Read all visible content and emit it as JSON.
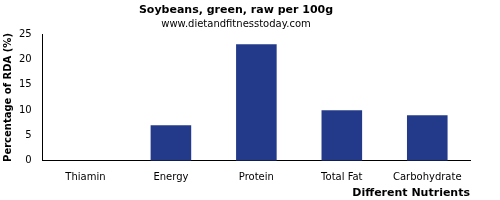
{
  "chart_data": {
    "type": "bar",
    "title": "Soybeans, green, raw per 100g",
    "subtitle": "www.dietandfitnesstoday.com",
    "x_label": "Different Nutrients",
    "y_label": "Percentage of RDA (%)",
    "categories": [
      "Thiamin",
      "Energy",
      "Protein",
      "Total Fat",
      "Carbohydrate"
    ],
    "values": [
      0,
      7,
      23,
      10,
      9
    ],
    "color": "#233a8b",
    "ylim": [
      0,
      25
    ],
    "yticks": [
      0,
      5,
      10,
      15,
      20,
      25
    ],
    "grid": false
  }
}
